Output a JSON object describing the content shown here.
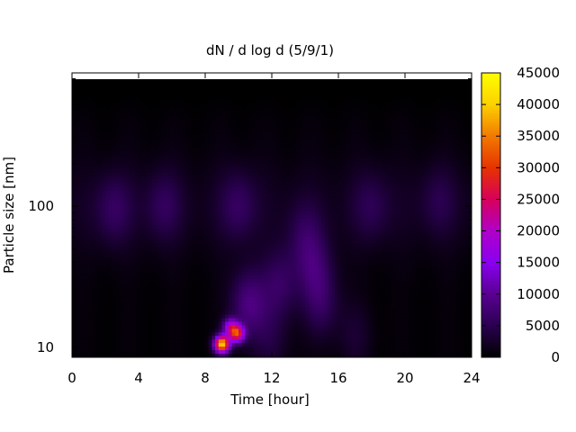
{
  "chart_data": {
    "type": "heatmap",
    "title": "dN / d log d (5/9/1)",
    "xlabel": "Time [hour]",
    "ylabel": "Particle size [nm]",
    "xlim": [
      0,
      24
    ],
    "x_ticks": [
      "0",
      "4",
      "8",
      "12",
      "16",
      "20",
      "24"
    ],
    "y_scale": "log",
    "ylim": [
      8.5,
      880
    ],
    "y_ticks": [
      "10",
      "100"
    ],
    "grid": false,
    "colorbar": {
      "range": [
        0,
        45000
      ],
      "ticks": [
        "0",
        "5000",
        "10000",
        "15000",
        "20000",
        "25000",
        "30000",
        "35000",
        "40000",
        "45000"
      ],
      "colormap": [
        "#000000",
        "#2a0050",
        "#5a0092",
        "#8a00f0",
        "#b000c8",
        "#d8005a",
        "#e63300",
        "#f27a00",
        "#fcd100",
        "#ffff00"
      ]
    },
    "background_level": 0,
    "features": [
      {
        "time_hour": 9.0,
        "size_nm": 10.5,
        "value": 40000
      },
      {
        "time_hour": 9.9,
        "size_nm": 12.5,
        "value": 27000
      },
      {
        "time_hour": 9.5,
        "size_nm": 14,
        "value": 15000
      },
      {
        "time_hour": 10.6,
        "size_nm": 20,
        "value": 8000
      },
      {
        "time_hour": 12.5,
        "size_nm": 28,
        "value": 5500
      },
      {
        "time_hour": 14.6,
        "size_nm": 35,
        "value": 5000
      },
      {
        "time_hour": 15.0,
        "size_nm": 20,
        "value": 4500
      },
      {
        "time_hour": 14.0,
        "size_nm": 60,
        "value": 4000
      },
      {
        "time_hour": 2.5,
        "size_nm": 95,
        "value": 4500
      },
      {
        "time_hour": 5.5,
        "size_nm": 100,
        "value": 4000
      },
      {
        "time_hour": 10.0,
        "size_nm": 100,
        "value": 4500
      },
      {
        "time_hour": 18.0,
        "size_nm": 100,
        "value": 3500
      },
      {
        "time_hour": 22.0,
        "size_nm": 110,
        "value": 3000
      },
      {
        "time_hour": 12.0,
        "size_nm": 11,
        "value": 3000
      },
      {
        "time_hour": 17.0,
        "size_nm": 12,
        "value": 2500
      }
    ]
  }
}
